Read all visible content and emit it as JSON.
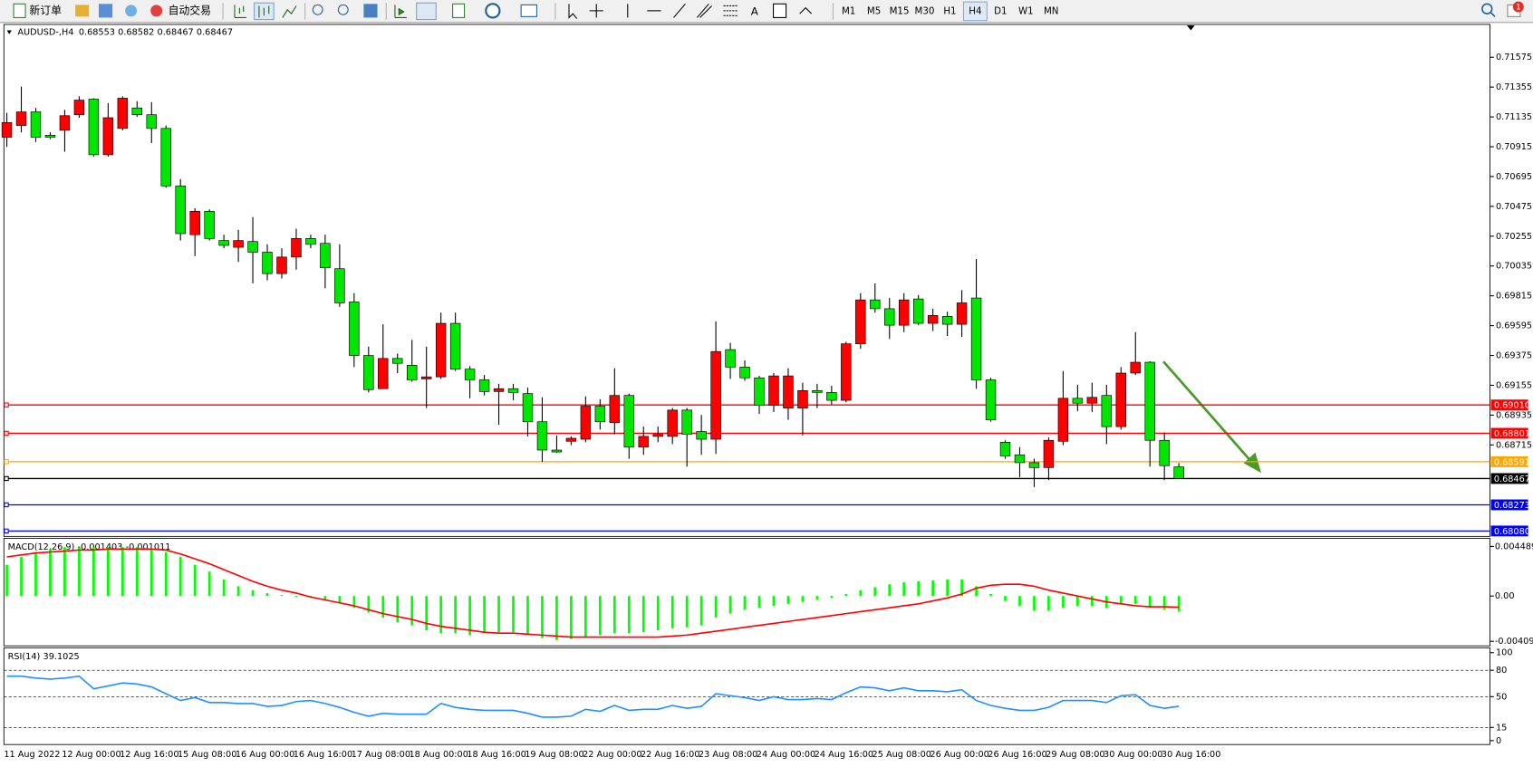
{
  "toolbar": {
    "new_order": "新订单",
    "auto_trading": "自动交易",
    "timeframes": [
      "M1",
      "M5",
      "M15",
      "M30",
      "H1",
      "H4",
      "D1",
      "W1",
      "MN"
    ],
    "selected": "H4",
    "notifications": 1
  },
  "chart_data": [
    {
      "type": "candlestick",
      "title": "AUDUSD-,H4",
      "categories": [
        "11 Aug 2022",
        null,
        null,
        null,
        "12 Aug 00:00",
        null,
        null,
        null,
        "12 Aug 16:00",
        null,
        null,
        null,
        "15 Aug 08:00",
        null,
        null,
        null,
        "16 Aug 00:00",
        null,
        null,
        null,
        "16 Aug 16:00",
        null,
        null,
        null,
        "17 Aug 08:00",
        null,
        null,
        null,
        "18 Aug 00:00",
        null,
        null,
        null,
        "18 Aug 16:00",
        null,
        null,
        null,
        "19 Aug 08:00",
        null,
        null,
        null,
        "22 Aug 00:00",
        null,
        null,
        null,
        "22 Aug 16:00",
        null,
        null,
        null,
        "23 Aug 08:00",
        null,
        null,
        null,
        "24 Aug 00:00",
        null,
        null,
        null,
        "24 Aug 16:00",
        null,
        null,
        null,
        "25 Aug 08:00",
        null,
        null,
        null,
        "26 Aug 00:00",
        null,
        null,
        null,
        "26 Aug 16:00",
        null,
        null,
        null,
        "29 Aug 08:00",
        null,
        null,
        null,
        "30 Aug 00:00",
        null,
        null,
        null,
        "30 Aug 16:00",
        null
      ],
      "open": [
        0.70985,
        0.71072,
        0.71172,
        0.71,
        0.71036,
        0.71151,
        0.71266,
        0.70856,
        0.7105,
        0.71201,
        0.71151,
        0.7105,
        0.70626,
        0.70266,
        0.70439,
        0.70223,
        0.70173,
        0.70216,
        0.70137,
        0.69979,
        0.70101,
        0.70238,
        0.70202,
        0.70015,
        0.6977,
        0.69375,
        0.6913,
        0.69353,
        0.69303,
        0.69202,
        0.69217,
        0.69612,
        0.69274,
        0.69195,
        0.69109,
        0.6913,
        0.69094,
        0.68886,
        0.68677,
        0.68742,
        0.68757,
        0.69001,
        0.68879,
        0.6908,
        0.68699,
        0.68778,
        0.68778,
        0.68972,
        0.68814,
        0.68757,
        0.69418,
        0.69289,
        0.6921,
        0.69008,
        0.68987,
        0.68987,
        0.69116,
        0.69102,
        0.69044,
        0.69461,
        0.69785,
        0.6972,
        0.69598,
        0.69792,
        0.69612,
        0.69663,
        0.69605,
        0.69799,
        0.69195,
        0.68735,
        0.68642,
        0.68584,
        0.68548,
        0.68742,
        0.69059,
        0.69023,
        0.6908,
        0.6885,
        0.69245,
        0.69325,
        0.68749,
        0.68553
      ],
      "high": [
        0.71165,
        0.71359,
        0.71201,
        0.71021,
        0.71187,
        0.71287,
        0.71273,
        0.71237,
        0.71287,
        0.71251,
        0.71244,
        0.71072,
        0.70676,
        0.70461,
        0.70453,
        0.70266,
        0.70302,
        0.70396,
        0.70195,
        0.70166,
        0.7031,
        0.70266,
        0.70266,
        0.70195,
        0.69835,
        0.6944,
        0.69605,
        0.69389,
        0.6949,
        0.6944,
        0.69691,
        0.69691,
        0.69296,
        0.69231,
        0.69166,
        0.69166,
        0.69138,
        0.69066,
        0.68785,
        0.68778,
        0.69073,
        0.69051,
        0.69281,
        0.69094,
        0.6885,
        0.6885,
        0.68987,
        0.68987,
        0.68936,
        0.69627,
        0.69468,
        0.69339,
        0.69224,
        0.69245,
        0.69281,
        0.69174,
        0.69166,
        0.69152,
        0.69476,
        0.69835,
        0.69907,
        0.69799,
        0.69835,
        0.69821,
        0.6972,
        0.69698,
        0.69857,
        0.70087,
        0.6921,
        0.68749,
        0.68699,
        0.68613,
        0.68771,
        0.6926,
        0.69159,
        0.69174,
        0.69159,
        0.69289,
        0.69547,
        0.69332,
        0.68807,
        0.68582
      ],
      "low": [
        0.70914,
        0.71021,
        0.7095,
        0.70971,
        0.70878,
        0.71129,
        0.70842,
        0.70842,
        0.71036,
        0.71136,
        0.70942,
        0.70612,
        0.70223,
        0.70108,
        0.70223,
        0.70166,
        0.70065,
        0.69907,
        0.69929,
        0.69943,
        0.70008,
        0.70166,
        0.69871,
        0.69734,
        0.69289,
        0.69102,
        0.6913,
        0.69245,
        0.69181,
        0.68987,
        0.69202,
        0.6926,
        0.69059,
        0.6908,
        0.68864,
        0.69044,
        0.68778,
        0.68591,
        0.68656,
        0.68713,
        0.68735,
        0.68828,
        0.68793,
        0.68613,
        0.68642,
        0.68735,
        0.68721,
        0.68555,
        0.68642,
        0.68649,
        0.69202,
        0.69188,
        0.68944,
        0.68958,
        0.689,
        0.68785,
        0.68987,
        0.69015,
        0.6903,
        0.69425,
        0.69691,
        0.69497,
        0.69547,
        0.69598,
        0.69555,
        0.69519,
        0.69512,
        0.6913,
        0.68886,
        0.68613,
        0.68476,
        0.68404,
        0.68455,
        0.68713,
        0.68965,
        0.68958,
        0.68721,
        0.68828,
        0.69231,
        0.68555,
        0.68455,
        0.68467
      ],
      "close": [
        0.71093,
        0.71172,
        0.70985,
        0.70985,
        0.71144,
        0.71259,
        0.70856,
        0.71129,
        0.71273,
        0.71151,
        0.7105,
        0.70626,
        0.70274,
        0.70439,
        0.70238,
        0.70187,
        0.70223,
        0.70137,
        0.69979,
        0.70101,
        0.70238,
        0.70195,
        0.70022,
        0.69763,
        0.69375,
        0.69123,
        0.69353,
        0.69317,
        0.69195,
        0.69217,
        0.69612,
        0.69274,
        0.69195,
        0.69109,
        0.6913,
        0.69102,
        0.68886,
        0.68677,
        0.68663,
        0.68764,
        0.69001,
        0.68886,
        0.6908,
        0.68699,
        0.68778,
        0.68793,
        0.68972,
        0.68793,
        0.68757,
        0.69404,
        0.69289,
        0.6921,
        0.69008,
        0.69224,
        0.69224,
        0.69116,
        0.69102,
        0.69044,
        0.69461,
        0.69785,
        0.6972,
        0.69598,
        0.69785,
        0.69612,
        0.6967,
        0.69605,
        0.69763,
        0.69195,
        0.689,
        0.68634,
        0.68584,
        0.68548,
        0.68749,
        0.69059,
        0.69023,
        0.69066,
        0.6885,
        0.69245,
        0.69325,
        0.68749,
        0.68562,
        0.68467
      ],
      "up_color": "#ff0000",
      "down_color": "#00e600",
      "ylim": [
        0.6804,
        0.7181
      ],
      "yticks": [
        0.71575,
        0.71355,
        0.71135,
        0.70915,
        0.70695,
        0.70475,
        0.70255,
        0.70035,
        0.69815,
        0.69595,
        0.69375,
        0.69155,
        0.68935,
        0.68715
      ],
      "levels": [
        {
          "value": 0.6901,
          "label": "0.69010",
          "color": "#ff0000"
        },
        {
          "value": 0.68801,
          "color": "#ff0000"
        },
        {
          "value": 0.68591,
          "color": "#ffa500"
        },
        {
          "value": 0.68467,
          "color": "#000000"
        },
        {
          "value": 0.68273,
          "color": "#0000ff"
        },
        {
          "value": 0.6808,
          "label": "0.68080",
          "color": "#0000ff"
        }
      ],
      "grid": false
    },
    {
      "type": "macd",
      "title": "MACD(12,26,9)",
      "series": [
        {
          "name": "MACD",
          "type": "bar",
          "color": "#00ff00",
          "values": [
            0.002832,
            0.00354,
            0.003983,
            0.004248,
            0.004425,
            0.004425,
            0.004425,
            0.004425,
            0.004425,
            0.004425,
            0.004248,
            0.003983,
            0.00354,
            0.002832,
            0.002213,
            0.001505,
            0.000885,
            0.000531,
            0.000266,
            8.9e-05,
            -8.9e-05,
            -0.000177,
            -0.000354,
            -0.00062,
            -0.001062,
            -0.001505,
            -0.001947,
            -0.00239,
            -0.002655,
            -0.003098,
            -0.003363,
            -0.003363,
            -0.00354,
            -0.003363,
            -0.003275,
            -0.003275,
            -0.00354,
            -0.003806,
            -0.003983,
            -0.003894,
            -0.003717,
            -0.00354,
            -0.003363,
            -0.003363,
            -0.003275,
            -0.003098,
            -0.002921,
            -0.002832,
            -0.002655,
            -0.001947,
            -0.001593,
            -0.001239,
            -0.001062,
            -0.000885,
            -0.000708,
            -0.000531,
            -0.000354,
            -0.000177,
            0.000177,
            0.000531,
            0.000797,
            0.001062,
            0.001239,
            0.001328,
            0.001416,
            0.001505,
            0.001505,
            0.000885,
            0.000177,
            -0.000443,
            -0.000885,
            -0.001328,
            -0.001328,
            -0.001062,
            -0.000885,
            -0.000885,
            -0.001062,
            -0.000708,
            -0.000708,
            -0.001062,
            -0.001239,
            -0.001403
          ]
        },
        {
          "name": "Signal",
          "type": "line",
          "color": "#ff0000",
          "values": [
            0.00354,
            0.003717,
            0.003894,
            0.003983,
            0.004071,
            0.00416,
            0.00416,
            0.004248,
            0.004248,
            0.004248,
            0.004248,
            0.00416,
            0.003806,
            0.003363,
            0.002921,
            0.00239,
            0.001859,
            0.001328,
            0.000885,
            0.000531,
            0.000266,
            -8.9e-05,
            -0.000354,
            -0.00062,
            -0.000885,
            -0.001239,
            -0.001593,
            -0.001859,
            -0.002124,
            -0.002478,
            -0.002744,
            -0.002921,
            -0.003098,
            -0.003275,
            -0.003363,
            -0.003363,
            -0.003452,
            -0.00354,
            -0.003629,
            -0.003717,
            -0.003717,
            -0.003717,
            -0.003717,
            -0.003717,
            -0.003717,
            -0.003717,
            -0.003629,
            -0.00354,
            -0.003363,
            -0.003186,
            -0.003009,
            -0.002832,
            -0.002655,
            -0.002478,
            -0.002301,
            -0.002124,
            -0.001947,
            -0.00177,
            -0.001593,
            -0.001416,
            -0.001239,
            -0.001062,
            -0.000885,
            -0.000708,
            -0.000443,
            -0.000177,
            0.000177,
            0.000708,
            0.000974,
            0.001062,
            0.001062,
            0.000885,
            0.000531,
            0.000266,
            0,
            -0.000266,
            -0.000531,
            -0.000708,
            -0.000885,
            -0.000974,
            -0.000974,
            -0.001011
          ]
        }
      ],
      "ylim": [
        -0.00451,
        0.00513
      ],
      "yticks": [
        0.004489,
        {
          "value": 0,
          "label": "0.00"
        },
        -0.004098
      ]
    },
    {
      "type": "line",
      "title": "RSI(14)",
      "series": [
        {
          "name": "RSI",
          "color": "#1e90ff",
          "values": [
            73.3,
            73.3,
            71.1,
            70.0,
            71.1,
            73.3,
            58.9,
            62.2,
            65.6,
            64.4,
            61.1,
            53.3,
            45.6,
            48.9,
            43.3,
            43.3,
            42.2,
            42.2,
            38.9,
            40.0,
            44.4,
            45.6,
            42.2,
            37.8,
            32.2,
            27.8,
            31.1,
            30.0,
            30.0,
            30.0,
            42.2,
            37.8,
            35.6,
            34.4,
            34.4,
            34.4,
            31.1,
            26.7,
            26.7,
            27.8,
            35.6,
            33.3,
            40.0,
            34.4,
            35.6,
            35.6,
            40.0,
            36.7,
            38.9,
            53.3,
            51.1,
            48.9,
            45.6,
            50.0,
            46.7,
            46.7,
            47.8,
            46.7,
            54.4,
            61.1,
            60.0,
            56.7,
            60.0,
            56.7,
            56.7,
            55.6,
            57.8,
            45.6,
            40.0,
            36.7,
            34.4,
            34.4,
            37.8,
            45.6,
            45.6,
            45.6,
            43.3,
            51.1,
            52.2,
            40.0,
            36.7,
            39.1025
          ]
        }
      ],
      "ylim": [
        0,
        100
      ],
      "yticks": [
        100,
        80,
        50,
        15,
        0
      ],
      "levels": [
        80,
        50,
        15
      ]
    }
  ]
}
